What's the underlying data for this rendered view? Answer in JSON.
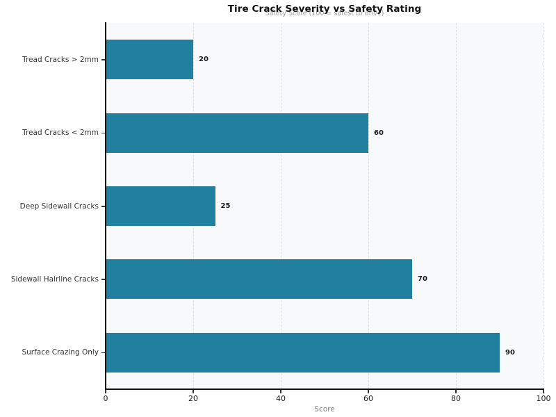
{
  "chart_data": {
    "type": "bar",
    "orientation": "horizontal",
    "title": "Tire Crack Severity vs Safety Rating",
    "subtitle": "Safety Score (100 = safest to drive)",
    "categories": [
      "Tread Cracks > 2mm",
      "Tread Cracks < 2mm",
      "Deep Sidewall Cracks",
      "Sidewall Hairline Cracks",
      "Surface Crazing Only"
    ],
    "values": [
      20,
      60,
      25,
      70,
      90
    ],
    "xlabel": "Score",
    "x_ticks": [
      0,
      20,
      40,
      60,
      80,
      100
    ],
    "xlim": [
      0,
      100
    ],
    "grid": "vertical-dashed",
    "legend": "none",
    "colors": {
      "bar": "#217f9f",
      "plot_background": "#f8f9fa",
      "gridline": "#dcdfe2",
      "spine": "#111111",
      "value_label": "#1a1a1a",
      "tick_label": "#333333",
      "axis_label": "#808080"
    }
  }
}
